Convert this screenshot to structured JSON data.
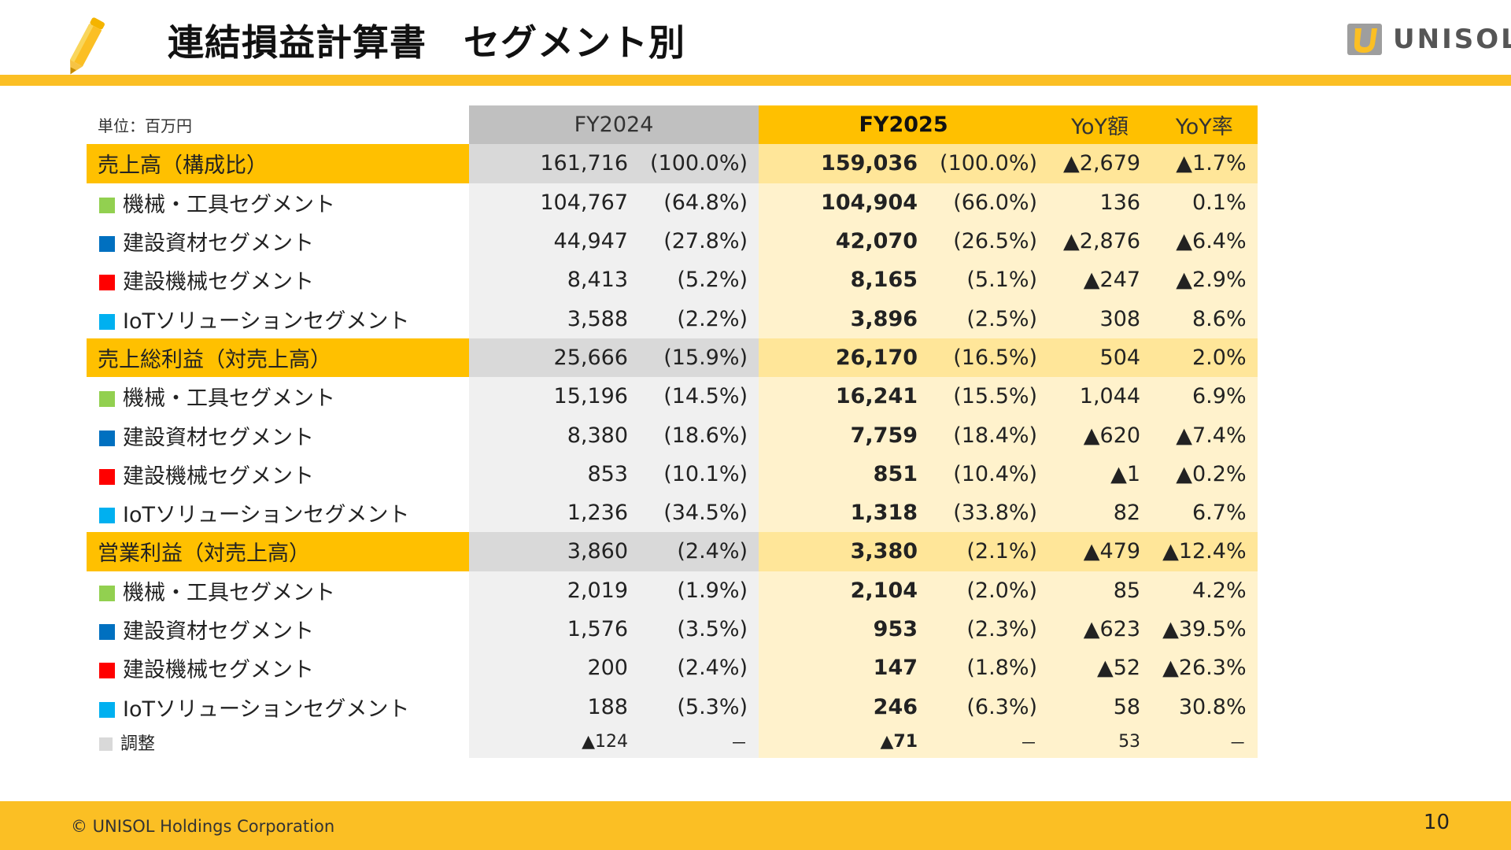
{
  "header": {
    "title": "連結損益計算書　セグメント別",
    "logo_text": "UNISOL",
    "accent": "#fbbf24"
  },
  "table": {
    "unit": "単位：百万円",
    "col_fy2024": "FY2024",
    "col_fy2025": "FY2025",
    "col_yoy_amount": "YoY額",
    "col_yoy_rate": "YoY率",
    "rows": [
      {
        "label": "売上高（構成比）",
        "a1": "161,716",
        "a2": "(100.0%)",
        "b1": "159,036",
        "b2": "(100.0%)",
        "y1": "▲2,679",
        "y2": "▲1.7%"
      },
      {
        "label": "機械・工具セグメント",
        "a1": "104,767",
        "a2": "(64.8%)",
        "b1": "104,904",
        "b2": "(66.0%)",
        "y1": "136",
        "y2": "0.1%"
      },
      {
        "label": "建設資材セグメント",
        "a1": "44,947",
        "a2": "(27.8%)",
        "b1": "42,070",
        "b2": "(26.5%)",
        "y1": "▲2,876",
        "y2": "▲6.4%"
      },
      {
        "label": "建設機械セグメント",
        "a1": "8,413",
        "a2": "(5.2%)",
        "b1": "8,165",
        "b2": "(5.1%)",
        "y1": "▲247",
        "y2": "▲2.9%"
      },
      {
        "label": "IoTソリューションセグメント",
        "a1": "3,588",
        "a2": "(2.2%)",
        "b1": "3,896",
        "b2": "(2.5%)",
        "y1": "308",
        "y2": "8.6%"
      },
      {
        "label": "売上総利益（対売上高）",
        "a1": "25,666",
        "a2": "(15.9%)",
        "b1": "26,170",
        "b2": "(16.5%)",
        "y1": "504",
        "y2": "2.0%"
      },
      {
        "label": "機械・工具セグメント",
        "a1": "15,196",
        "a2": "(14.5%)",
        "b1": "16,241",
        "b2": "(15.5%)",
        "y1": "1,044",
        "y2": "6.9%"
      },
      {
        "label": "建設資材セグメント",
        "a1": "8,380",
        "a2": "(18.6%)",
        "b1": "7,759",
        "b2": "(18.4%)",
        "y1": "▲620",
        "y2": "▲7.4%"
      },
      {
        "label": "建設機械セグメント",
        "a1": "853",
        "a2": "(10.1%)",
        "b1": "851",
        "b2": "(10.4%)",
        "y1": "▲1",
        "y2": "▲0.2%"
      },
      {
        "label": "IoTソリューションセグメント",
        "a1": "1,236",
        "a2": "(34.5%)",
        "b1": "1,318",
        "b2": "(33.8%)",
        "y1": "82",
        "y2": "6.7%"
      },
      {
        "label": "営業利益（対売上高）",
        "a1": "3,860",
        "a2": "(2.4%)",
        "b1": "3,380",
        "b2": "(2.1%)",
        "y1": "▲479",
        "y2": "▲12.4%"
      },
      {
        "label": "機械・工具セグメント",
        "a1": "2,019",
        "a2": "(1.9%)",
        "b1": "2,104",
        "b2": "(2.0%)",
        "y1": "85",
        "y2": "4.2%"
      },
      {
        "label": "建設資材セグメント",
        "a1": "1,576",
        "a2": "(3.5%)",
        "b1": "953",
        "b2": "(2.3%)",
        "y1": "▲623",
        "y2": "▲39.5%"
      },
      {
        "label": "建設機械セグメント",
        "a1": "200",
        "a2": "(2.4%)",
        "b1": "147",
        "b2": "(1.8%)",
        "y1": "▲52",
        "y2": "▲26.3%"
      },
      {
        "label": "IoTソリューションセグメント",
        "a1": "188",
        "a2": "(5.3%)",
        "b1": "246",
        "b2": "(6.3%)",
        "y1": "58",
        "y2": "30.8%"
      },
      {
        "label": "調整",
        "a1": "▲124",
        "a2": "－",
        "b1": "▲71",
        "b2": "－",
        "y1": "53",
        "y2": "－"
      }
    ]
  },
  "segment_colors": {
    "machinery": "#92d050",
    "materials": "#0070c0",
    "equipment": "#ff0000",
    "iot": "#00b0f0",
    "adjust": "#d9d9d9"
  },
  "footer": {
    "copyright": "© UNISOL Holdings Corporation",
    "page": "10"
  }
}
